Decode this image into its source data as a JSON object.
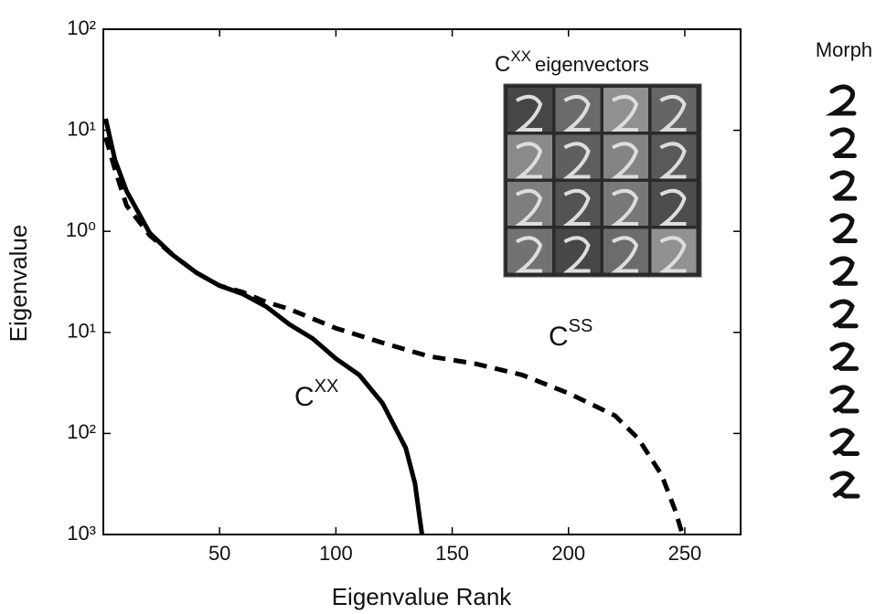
{
  "chart_data": {
    "type": "line",
    "xlabel": "Eigenvalue Rank",
    "ylabel": "Eigenvalue",
    "log_y": true,
    "xlim": [
      0,
      274
    ],
    "ylim": [
      0.001,
      100
    ],
    "xticks": [
      50,
      100,
      150,
      200,
      250
    ],
    "yticks": [
      {
        "value": 100,
        "label": "10²"
      },
      {
        "value": 10,
        "label": "10¹"
      },
      {
        "value": 1,
        "label": "10⁰"
      },
      {
        "value": 0.1,
        "label": "10¹"
      },
      {
        "value": 0.01,
        "label": "10²"
      },
      {
        "value": 0.001,
        "label": "10³"
      }
    ],
    "series": [
      {
        "color": "#000000",
        "dash": "solid",
        "x": [
          1,
          5,
          10,
          20,
          30,
          40,
          50,
          60,
          70,
          80,
          90,
          100,
          110,
          120,
          125,
          130,
          134,
          137
        ],
        "values": [
          13,
          5.1,
          2.5,
          0.96,
          0.58,
          0.39,
          0.29,
          0.24,
          0.18,
          0.12,
          0.087,
          0.055,
          0.038,
          0.02,
          0.012,
          0.0072,
          0.0032,
          0.001
        ]
      },
      {
        "color": "#000000",
        "dash": "dashed",
        "x": [
          1,
          5,
          10,
          20,
          30,
          40,
          50,
          60,
          70,
          80,
          100,
          120,
          140,
          160,
          180,
          200,
          220,
          230,
          240,
          246,
          249
        ],
        "values": [
          8.5,
          4.1,
          1.8,
          0.91,
          0.58,
          0.39,
          0.29,
          0.25,
          0.2,
          0.17,
          0.11,
          0.079,
          0.058,
          0.049,
          0.038,
          0.025,
          0.015,
          0.0089,
          0.0039,
          0.0017,
          0.001
        ]
      }
    ],
    "annotations": [
      {
        "text": "C",
        "superscript": "XX"
      },
      {
        "text": "C",
        "superscript": "SS"
      },
      {
        "text": "C",
        "superscript": "XX",
        "suffix": "eigenvectors"
      }
    ],
    "side_label": "Morph"
  }
}
